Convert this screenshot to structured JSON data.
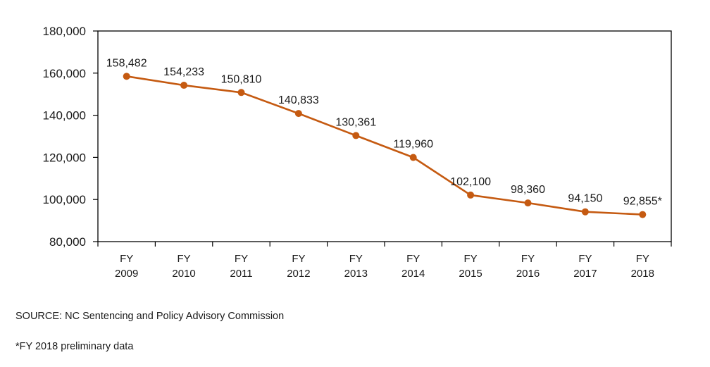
{
  "chart_data": {
    "type": "line",
    "title": "",
    "xlabel": "",
    "ylabel": "",
    "categories": [
      [
        "FY",
        "2009"
      ],
      [
        "FY",
        "2010"
      ],
      [
        "FY",
        "2011"
      ],
      [
        "FY",
        "2012"
      ],
      [
        "FY",
        "2013"
      ],
      [
        "FY",
        "2014"
      ],
      [
        "FY",
        "2015"
      ],
      [
        "FY",
        "2016"
      ],
      [
        "FY",
        "2017"
      ],
      [
        "FY",
        "2018"
      ]
    ],
    "series": [
      {
        "name": "Total",
        "color": "#C55A11",
        "values": [
          158482,
          154233,
          150810,
          140833,
          130361,
          119960,
          102100,
          98360,
          94150,
          92855
        ],
        "data_labels": [
          "158,482",
          "154,233",
          "150,810",
          "140,833",
          "130,361",
          "119,960",
          "102,100",
          "98,360",
          "94,150",
          "92,855*"
        ]
      }
    ],
    "ylim": [
      80000,
      180000
    ],
    "yticks": [
      80000,
      100000,
      120000,
      140000,
      160000,
      180000
    ],
    "ytick_labels": [
      "80,000",
      "100,000",
      "120,000",
      "140,000",
      "160,000",
      "180,000"
    ],
    "grid": false,
    "legend": "none",
    "frame": "box"
  },
  "notes": {
    "source": "SOURCE: NC Sentencing and Policy Advisory Commission",
    "footnote": "*FY 2018 preliminary data"
  }
}
